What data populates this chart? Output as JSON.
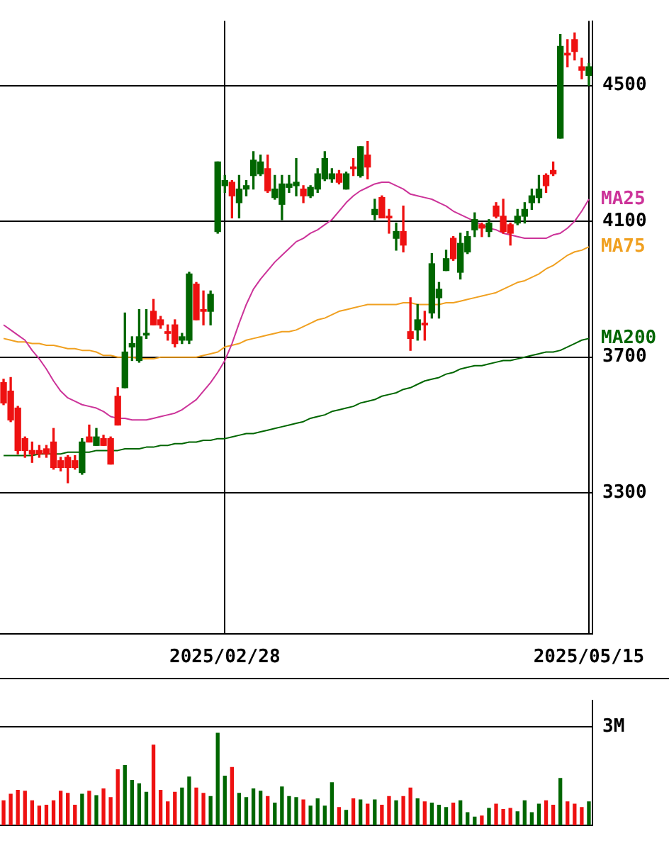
{
  "chart_data": [
    {
      "type": "candlestick",
      "categories": [
        null,
        null,
        null,
        null,
        null,
        null,
        null,
        null,
        null,
        null,
        null,
        null,
        null,
        null,
        null,
        null,
        null,
        null,
        null,
        null,
        null,
        null,
        null,
        null,
        null,
        null,
        null,
        null,
        null,
        null,
        null,
        "2025/02/28",
        null,
        null,
        null,
        null,
        null,
        null,
        null,
        null,
        null,
        null,
        null,
        null,
        null,
        null,
        null,
        null,
        null,
        null,
        null,
        null,
        null,
        null,
        null,
        null,
        null,
        null,
        null,
        null,
        null,
        null,
        null,
        null,
        null,
        null,
        null,
        null,
        null,
        null,
        null,
        null,
        null,
        null,
        null,
        null,
        null,
        null,
        null,
        null,
        null,
        null,
        "2025/05/15"
      ],
      "ohlc": [
        [
          3625,
          3635,
          3560,
          3565
        ],
        [
          3600,
          3640,
          3510,
          3515
        ],
        [
          3550,
          3555,
          3415,
          3425
        ],
        [
          3460,
          3465,
          3405,
          3425
        ],
        [
          3425,
          3450,
          3390,
          3415
        ],
        [
          3425,
          3440,
          3405,
          3415
        ],
        [
          3430,
          3440,
          3405,
          3415
        ],
        [
          3450,
          3490,
          3370,
          3375
        ],
        [
          3395,
          3405,
          3365,
          3375
        ],
        [
          3405,
          3410,
          3330,
          3375
        ],
        [
          3395,
          3410,
          3370,
          3375
        ],
        [
          3360,
          3460,
          3355,
          3450
        ],
        [
          3465,
          3500,
          3450,
          3450
        ],
        [
          3440,
          3490,
          3440,
          3465
        ],
        [
          3460,
          3470,
          3440,
          3440
        ],
        [
          3460,
          3465,
          3385,
          3385
        ],
        [
          3585,
          3610,
          3500,
          3500
        ],
        [
          3610,
          3830,
          3610,
          3715
        ],
        [
          3730,
          3760,
          3690,
          3740
        ],
        [
          3690,
          3840,
          3685,
          3760
        ],
        [
          3765,
          3840,
          3755,
          3770
        ],
        [
          3835,
          3870,
          3795,
          3795
        ],
        [
          3810,
          3820,
          3785,
          3795
        ],
        [
          3775,
          3795,
          3750,
          3770
        ],
        [
          3795,
          3810,
          3730,
          3740
        ],
        [
          3750,
          3770,
          3740,
          3760
        ],
        [
          3750,
          3950,
          3740,
          3945
        ],
        [
          3915,
          3920,
          3810,
          3810
        ],
        [
          3840,
          3895,
          3795,
          3835
        ],
        [
          3835,
          3895,
          3795,
          3885
        ],
        [
          4070,
          4275,
          4065,
          4275
        ],
        [
          4205,
          4235,
          4185,
          4220
        ],
        [
          4215,
          4220,
          4110,
          4175
        ],
        [
          4155,
          4235,
          4110,
          4195
        ],
        [
          4195,
          4220,
          4175,
          4205
        ],
        [
          4235,
          4305,
          4195,
          4280
        ],
        [
          4240,
          4295,
          4235,
          4275
        ],
        [
          4255,
          4295,
          4185,
          4190
        ],
        [
          4170,
          4235,
          4165,
          4195
        ],
        [
          4150,
          4235,
          4105,
          4210
        ],
        [
          4200,
          4235,
          4185,
          4210
        ],
        [
          4205,
          4285,
          4175,
          4215
        ],
        [
          4195,
          4205,
          4155,
          4175
        ],
        [
          4175,
          4205,
          4170,
          4200
        ],
        [
          4195,
          4255,
          4185,
          4240
        ],
        [
          4225,
          4305,
          4220,
          4285
        ],
        [
          4225,
          4255,
          4215,
          4240
        ],
        [
          4240,
          4250,
          4210,
          4215
        ],
        [
          4195,
          4245,
          4195,
          4240
        ],
        [
          4260,
          4285,
          4235,
          4255
        ],
        [
          4235,
          4320,
          4230,
          4320
        ],
        [
          4295,
          4335,
          4225,
          4260
        ],
        [
          4120,
          4165,
          4105,
          4135
        ],
        [
          4170,
          4175,
          4110,
          4110
        ],
        [
          4115,
          4135,
          4065,
          4110
        ],
        [
          4050,
          4095,
          4015,
          4070
        ],
        [
          4070,
          4145,
          4010,
          4030
        ],
        [
          3775,
          3875,
          3720,
          3755
        ],
        [
          3780,
          3855,
          3750,
          3810
        ],
        [
          3800,
          3835,
          3750,
          3795
        ],
        [
          3830,
          4005,
          3815,
          3975
        ],
        [
          3875,
          3920,
          3815,
          3900
        ],
        [
          3955,
          4015,
          3955,
          3990
        ],
        [
          4050,
          4055,
          3985,
          3990
        ],
        [
          3950,
          4065,
          3930,
          4035
        ],
        [
          4010,
          4070,
          4005,
          4055
        ],
        [
          4075,
          4125,
          4055,
          4105
        ],
        [
          4090,
          4095,
          4055,
          4080
        ],
        [
          4070,
          4105,
          4055,
          4095
        ],
        [
          4145,
          4155,
          4110,
          4115
        ],
        [
          4115,
          4165,
          4065,
          4070
        ],
        [
          4090,
          4095,
          4030,
          4065
        ],
        [
          4095,
          4135,
          4090,
          4115
        ],
        [
          4115,
          4155,
          4095,
          4135
        ],
        [
          4155,
          4195,
          4135,
          4175
        ],
        [
          4170,
          4235,
          4155,
          4195
        ],
        [
          4235,
          4240,
          4185,
          4205
        ],
        [
          4250,
          4275,
          4235,
          4240
        ],
        [
          4345,
          4650,
          4345,
          4615
        ],
        [
          4595,
          4635,
          4555,
          4590
        ],
        [
          4635,
          4655,
          4575,
          4600
        ],
        [
          4555,
          4580,
          4520,
          4545
        ],
        [
          4530,
          4565,
          4500,
          4555
        ]
      ],
      "colors": [
        "#ee1111",
        "#ee1111",
        "#ee1111",
        "#ee1111",
        "#ee1111",
        "#ee1111",
        "#ee1111",
        "#ee1111",
        "#ee1111",
        "#ee1111",
        "#ee1111",
        "#006600",
        "#ee1111",
        "#006600",
        "#ee1111",
        "#ee1111",
        "#ee1111",
        "#006600",
        "#006600",
        "#006600",
        "#006600",
        "#ee1111",
        "#ee1111",
        "#ee1111",
        "#ee1111",
        "#006600",
        "#006600",
        "#ee1111",
        "#ee1111",
        "#006600",
        "#006600",
        "#006600",
        "#ee1111",
        "#006600",
        "#006600",
        "#006600",
        "#006600",
        "#ee1111",
        "#006600",
        "#006600",
        "#006600",
        "#006600",
        "#ee1111",
        "#006600",
        "#006600",
        "#006600",
        "#006600",
        "#ee1111",
        "#006600",
        "#ee1111",
        "#006600",
        "#ee1111",
        "#006600",
        "#ee1111",
        "#ee1111",
        "#006600",
        "#ee1111",
        "#ee1111",
        "#006600",
        "#ee1111",
        "#006600",
        "#006600",
        "#006600",
        "#ee1111",
        "#006600",
        "#006600",
        "#006600",
        "#ee1111",
        "#006600",
        "#ee1111",
        "#ee1111",
        "#ee1111",
        "#006600",
        "#006600",
        "#006600",
        "#006600",
        "#ee1111",
        "#ee1111",
        "#006600",
        "#ee1111",
        "#ee1111",
        "#ee1111",
        "#006600"
      ],
      "series": [
        {
          "name": "MA25",
          "type": "line",
          "color": "#cc3399",
          "values": [
            3795,
            3780,
            3765,
            3750,
            3720,
            3695,
            3665,
            3630,
            3600,
            3580,
            3570,
            3560,
            3555,
            3550,
            3540,
            3525,
            3520,
            3520,
            3515,
            3515,
            3515,
            3520,
            3525,
            3530,
            3535,
            3545,
            3560,
            3575,
            3600,
            3625,
            3655,
            3690,
            3740,
            3800,
            3855,
            3900,
            3930,
            3955,
            3980,
            4000,
            4020,
            4040,
            4050,
            4065,
            4075,
            4090,
            4105,
            4130,
            4155,
            4175,
            4190,
            4200,
            4210,
            4215,
            4215,
            4205,
            4195,
            4180,
            4175,
            4170,
            4165,
            4155,
            4145,
            4130,
            4120,
            4110,
            4100,
            4090,
            4080,
            4075,
            4065,
            4060,
            4055,
            4050,
            4050,
            4050,
            4050,
            4060,
            4065,
            4080,
            4100,
            4130,
            4165
          ]
        },
        {
          "name": "MA75",
          "type": "line",
          "color": "#f0a020",
          "values": [
            3755,
            3750,
            3745,
            3745,
            3740,
            3740,
            3735,
            3735,
            3730,
            3725,
            3725,
            3720,
            3720,
            3715,
            3705,
            3705,
            3700,
            3700,
            3700,
            3695,
            3695,
            3695,
            3700,
            3700,
            3700,
            3700,
            3700,
            3700,
            3705,
            3710,
            3715,
            3730,
            3735,
            3740,
            3750,
            3755,
            3760,
            3765,
            3770,
            3775,
            3775,
            3780,
            3790,
            3800,
            3810,
            3815,
            3825,
            3835,
            3840,
            3845,
            3850,
            3855,
            3855,
            3855,
            3855,
            3855,
            3860,
            3860,
            3855,
            3855,
            3855,
            3855,
            3860,
            3860,
            3865,
            3870,
            3875,
            3880,
            3885,
            3890,
            3900,
            3910,
            3920,
            3925,
            3935,
            3945,
            3960,
            3970,
            3985,
            4000,
            4010,
            4015,
            4025
          ]
        },
        {
          "name": "MA200",
          "type": "line",
          "color": "#006600",
          "values": [
            3410,
            3410,
            3410,
            3410,
            3410,
            3415,
            3415,
            3415,
            3415,
            3420,
            3420,
            3420,
            3420,
            3425,
            3425,
            3425,
            3425,
            3430,
            3430,
            3430,
            3435,
            3435,
            3440,
            3440,
            3445,
            3445,
            3450,
            3450,
            3455,
            3455,
            3460,
            3460,
            3465,
            3470,
            3475,
            3475,
            3480,
            3485,
            3490,
            3495,
            3500,
            3505,
            3510,
            3520,
            3525,
            3530,
            3540,
            3545,
            3550,
            3555,
            3565,
            3570,
            3575,
            3585,
            3590,
            3595,
            3605,
            3610,
            3620,
            3630,
            3635,
            3640,
            3650,
            3655,
            3665,
            3670,
            3675,
            3675,
            3680,
            3685,
            3690,
            3690,
            3695,
            3700,
            3705,
            3710,
            3715,
            3715,
            3720,
            3730,
            3740,
            3750,
            3755
          ]
        }
      ],
      "ylim": [
        2885,
        4690
      ],
      "yticks": [
        3300,
        3700,
        4100,
        4500
      ],
      "grid": true,
      "marker": "none"
    },
    {
      "type": "bar",
      "categories": [
        null,
        null,
        null,
        null,
        null,
        null,
        null,
        null,
        null,
        null,
        null,
        null,
        null,
        null,
        null,
        null,
        null,
        null,
        null,
        null,
        null,
        null,
        null,
        null,
        null,
        null,
        null,
        null,
        null,
        null,
        null,
        null,
        null,
        null,
        null,
        null,
        null,
        null,
        null,
        null,
        null,
        null,
        null,
        null,
        null,
        null,
        null,
        null,
        null,
        null,
        null,
        null,
        null,
        null,
        null,
        null,
        null,
        null,
        null,
        null,
        null,
        null,
        null,
        null,
        null,
        null,
        null,
        null,
        null,
        null,
        null,
        null,
        null,
        null,
        null,
        null,
        null,
        null,
        null,
        null,
        null,
        null,
        null
      ],
      "values": [
        0.75,
        0.95,
        1.07,
        1.04,
        0.75,
        0.59,
        0.62,
        0.75,
        1.04,
        0.98,
        0.62,
        0.95,
        1.04,
        0.91,
        1.11,
        0.85,
        1.69,
        1.82,
        1.37,
        1.27,
        1.01,
        2.44,
        1.07,
        0.72,
        1.01,
        1.14,
        1.47,
        1.14,
        0.98,
        0.88,
        2.8,
        1.5,
        1.76,
        0.98,
        0.85,
        1.11,
        1.04,
        0.88,
        0.68,
        1.17,
        0.88,
        0.85,
        0.78,
        0.59,
        0.81,
        0.59,
        1.3,
        0.55,
        0.46,
        0.81,
        0.78,
        0.65,
        0.78,
        0.62,
        0.88,
        0.75,
        0.88,
        1.14,
        0.81,
        0.72,
        0.68,
        0.62,
        0.55,
        0.68,
        0.75,
        0.39,
        0.26,
        0.29,
        0.52,
        0.65,
        0.49,
        0.52,
        0.42,
        0.75,
        0.39,
        0.65,
        0.75,
        0.62,
        1.43,
        0.72,
        0.65,
        0.55,
        0.72
      ],
      "colors": [
        "#ee1111",
        "#ee1111",
        "#ee1111",
        "#ee1111",
        "#ee1111",
        "#ee1111",
        "#ee1111",
        "#ee1111",
        "#ee1111",
        "#ee1111",
        "#ee1111",
        "#006600",
        "#ee1111",
        "#006600",
        "#ee1111",
        "#ee1111",
        "#ee1111",
        "#006600",
        "#006600",
        "#006600",
        "#006600",
        "#ee1111",
        "#ee1111",
        "#ee1111",
        "#ee1111",
        "#006600",
        "#006600",
        "#ee1111",
        "#ee1111",
        "#006600",
        "#006600",
        "#006600",
        "#ee1111",
        "#006600",
        "#006600",
        "#006600",
        "#006600",
        "#ee1111",
        "#006600",
        "#006600",
        "#006600",
        "#006600",
        "#ee1111",
        "#006600",
        "#006600",
        "#006600",
        "#006600",
        "#ee1111",
        "#006600",
        "#ee1111",
        "#006600",
        "#ee1111",
        "#006600",
        "#ee1111",
        "#ee1111",
        "#006600",
        "#ee1111",
        "#ee1111",
        "#006600",
        "#ee1111",
        "#006600",
        "#006600",
        "#006600",
        "#ee1111",
        "#006600",
        "#006600",
        "#006600",
        "#ee1111",
        "#006600",
        "#ee1111",
        "#ee1111",
        "#ee1111",
        "#006600",
        "#006600",
        "#006600",
        "#006600",
        "#ee1111",
        "#ee1111",
        "#006600",
        "#ee1111",
        "#ee1111",
        "#ee1111",
        "#006600"
      ],
      "ylim": [
        0,
        3.8
      ],
      "yticks": [
        {
          "value": 0,
          "label": null
        },
        {
          "value": 3,
          "label": "3M"
        }
      ],
      "grid": "y",
      "tick_labels": "y"
    }
  ]
}
